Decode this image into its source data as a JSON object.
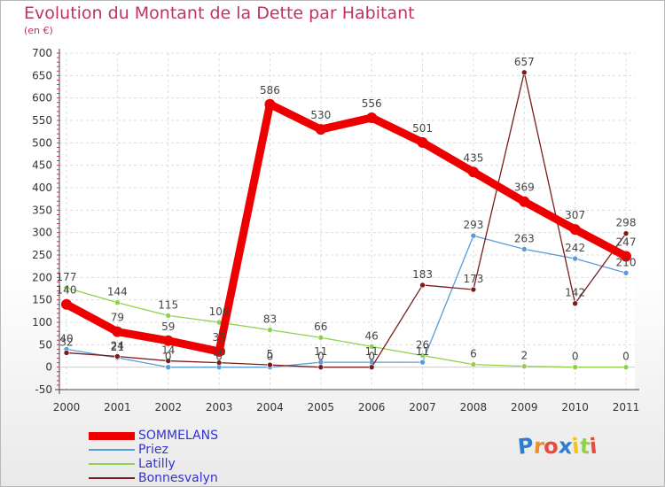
{
  "title": "Evolution du Montant de la Dette par Habitant",
  "subtitle": "(en €)",
  "brand": "Proxiti",
  "chart_data": {
    "type": "line",
    "x": [
      2000,
      2001,
      2002,
      2003,
      2004,
      2005,
      2006,
      2007,
      2008,
      2009,
      2010,
      2011
    ],
    "ylim": [
      -50,
      700
    ],
    "yticks": [
      -50,
      0,
      50,
      100,
      150,
      200,
      250,
      300,
      350,
      400,
      450,
      500,
      550,
      600,
      650,
      700
    ],
    "grid": true,
    "legend_position": "bottom-left",
    "series": [
      {
        "name": "SOMMELANS",
        "color": "#ee0000",
        "values": [
          140,
          79,
          59,
          35,
          586,
          530,
          556,
          501,
          435,
          369,
          307,
          247
        ]
      },
      {
        "name": "Priez",
        "color": "#5b9bd5",
        "values": [
          40,
          21,
          0,
          0,
          0,
          11,
          11,
          11,
          293,
          263,
          242,
          210
        ]
      },
      {
        "name": "Latilly",
        "color": "#8ed14a",
        "values": [
          177,
          144,
          115,
          100,
          83,
          66,
          46,
          26,
          6,
          2,
          0,
          0
        ]
      },
      {
        "name": "Bonnesvalyn",
        "color": "#7b1c1c",
        "values": [
          32,
          24,
          14,
          10,
          5,
          0,
          0,
          183,
          173,
          657,
          142,
          298
        ]
      }
    ],
    "labels": {
      "SOMMELANS": [
        "140",
        "79",
        "59",
        "35",
        "586",
        "530",
        "556",
        "501",
        "435",
        "369",
        "307",
        "247"
      ],
      "Priez": [
        "40",
        "21",
        "0",
        "0",
        "0",
        "11",
        "11",
        "11",
        "293",
        "263",
        "242",
        "210"
      ],
      "Latilly": [
        "177",
        "144",
        "115",
        "100",
        "83",
        "66",
        "46",
        "26",
        "6",
        "2",
        "0",
        "0"
      ],
      "Bonnesvalyn": [
        "32",
        "24",
        "14",
        "10",
        "5",
        "0",
        "0",
        "183",
        "173",
        "657",
        "142",
        "298"
      ]
    }
  }
}
